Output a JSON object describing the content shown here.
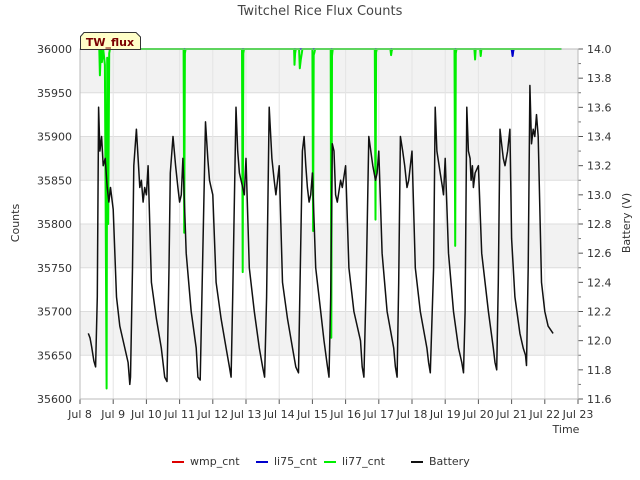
{
  "chart_data": {
    "type": "line",
    "title": "Twitchel Rice Flux Counts",
    "xlabel": "Time",
    "ylabel": "Counts",
    "y2label": "Battery (V)",
    "xlim": [
      8,
      23
    ],
    "ylim": [
      35600,
      36000
    ],
    "y2lim": [
      11.6,
      14.0
    ],
    "x_ticks": [
      8,
      9,
      10,
      11,
      12,
      13,
      14,
      15,
      16,
      17,
      18,
      19,
      20,
      21,
      22,
      23
    ],
    "x_tick_labels": [
      "Jul 8",
      "Jul 9",
      "Jul 10",
      "Jul 11",
      "Jul 12",
      "Jul 13",
      "Jul 14",
      "Jul 15",
      "Jul 16",
      "Jul 17",
      "Jul 18",
      "Jul 19",
      "Jul 20",
      "Jul 21",
      "Jul 22",
      "Jul 23"
    ],
    "y_ticks": [
      35600,
      35650,
      35700,
      35750,
      35800,
      35850,
      35900,
      35950,
      36000
    ],
    "y2_ticks": [
      11.6,
      11.8,
      12.0,
      12.2,
      12.4,
      12.6,
      12.8,
      13.0,
      13.2,
      13.4,
      13.6,
      13.8,
      14.0
    ],
    "y2_tick_labels": [
      "11.6",
      "11.8",
      "12.0",
      "12.2",
      "12.4",
      "12.6",
      "12.8",
      "13.0",
      "13.2",
      "13.4",
      "13.6",
      "13.8",
      "14.0"
    ],
    "badge": "TW_flux",
    "legend": [
      "wmp_cnt",
      "li75_cnt",
      "li77_cnt",
      "Battery"
    ],
    "series": [
      {
        "name": "wmp_cnt",
        "axis": "left",
        "color": "#dd0000",
        "x": [],
        "y": []
      },
      {
        "name": "li75_cnt",
        "axis": "left",
        "color": "#0000cc",
        "x": [
          8.5,
          21.0,
          21.01,
          21.03,
          21.05,
          21.07,
          22.5
        ],
        "y": [
          36000,
          36000,
          35998,
          35992,
          35998,
          36000,
          36000
        ]
      },
      {
        "name": "li77_cnt",
        "axis": "left",
        "color": "#00ee00",
        "x": [
          8.5,
          8.58,
          8.6,
          8.63,
          8.66,
          8.7,
          8.75,
          8.8,
          8.82,
          8.85,
          8.88,
          8.9,
          11.12,
          11.14,
          11.16,
          11.18,
          12.88,
          12.9,
          12.92,
          12.94,
          14.45,
          14.46,
          14.48,
          14.5,
          14.6,
          14.62,
          14.65,
          14.68,
          14.7,
          15.0,
          15.02,
          15.04,
          15.06,
          15.08,
          15.55,
          15.57,
          15.59,
          15.61,
          16.88,
          16.9,
          16.92,
          16.94,
          17.35,
          17.37,
          17.39,
          17.41,
          19.28,
          19.3,
          19.32,
          19.34,
          19.88,
          19.9,
          19.92,
          20.05,
          20.07,
          20.09,
          22.5
        ],
        "y": [
          36000,
          36000,
          35970,
          36000,
          35985,
          36000,
          35982,
          35612,
          35990,
          35800,
          35995,
          36000,
          36000,
          35790,
          35995,
          36000,
          36000,
          35745,
          35995,
          36000,
          36000,
          35982,
          35995,
          36000,
          36000,
          35978,
          35988,
          35995,
          36000,
          36000,
          35792,
          35993,
          35996,
          36000,
          36000,
          35670,
          35992,
          36000,
          36000,
          35805,
          35996,
          36000,
          36000,
          35993,
          35998,
          36000,
          36000,
          35775,
          35995,
          36000,
          36000,
          35988,
          36000,
          36000,
          35992,
          36000,
          36000
        ]
      },
      {
        "name": "Battery",
        "axis": "right",
        "color": "#111111",
        "x": [
          8.25,
          8.3,
          8.35,
          8.42,
          8.47,
          8.52,
          8.56,
          8.6,
          8.65,
          8.7,
          8.76,
          8.82,
          8.87,
          8.92,
          9.0,
          9.1,
          9.2,
          9.35,
          9.45,
          9.5,
          9.52,
          9.58,
          9.62,
          9.7,
          9.8,
          9.85,
          9.9,
          9.95,
          10.0,
          10.05,
          10.15,
          10.3,
          10.45,
          10.55,
          10.62,
          10.68,
          10.72,
          10.8,
          10.88,
          10.95,
          11.0,
          11.05,
          11.1,
          11.2,
          11.35,
          11.5,
          11.55,
          11.62,
          11.7,
          11.78,
          11.85,
          11.9,
          11.95,
          12.0,
          12.1,
          12.25,
          12.4,
          12.5,
          12.55,
          12.6,
          12.7,
          12.75,
          12.8,
          12.9,
          12.95,
          13.0,
          13.1,
          13.25,
          13.4,
          13.5,
          13.56,
          13.62,
          13.7,
          13.78,
          13.85,
          13.9,
          14.0,
          14.1,
          14.25,
          14.4,
          14.5,
          14.58,
          14.62,
          14.7,
          14.75,
          14.8,
          14.85,
          14.9,
          14.95,
          15.0,
          15.1,
          15.25,
          15.35,
          15.45,
          15.5,
          15.55,
          15.6,
          15.65,
          15.7,
          15.75,
          15.85,
          15.9,
          16.0,
          16.1,
          16.25,
          16.45,
          16.5,
          16.55,
          16.62,
          16.7,
          16.76,
          16.82,
          16.9,
          16.95,
          17.0,
          17.1,
          17.25,
          17.45,
          17.5,
          17.55,
          17.6,
          17.65,
          17.72,
          17.78,
          17.85,
          17.9,
          18.0,
          18.1,
          18.25,
          18.45,
          18.5,
          18.55,
          18.65,
          18.7,
          18.75,
          18.85,
          18.92,
          18.95,
          19.0,
          19.1,
          19.25,
          19.4,
          19.5,
          19.55,
          19.6,
          19.65,
          19.7,
          19.75,
          19.78,
          19.82,
          19.85,
          19.9,
          20.0,
          20.1,
          20.3,
          20.45,
          20.5,
          20.55,
          20.6,
          20.65,
          20.7,
          20.75,
          20.8,
          20.88,
          20.95,
          21.0,
          21.1,
          21.25,
          21.35,
          21.42,
          21.45,
          21.5,
          21.55,
          21.6,
          21.65,
          21.7,
          21.75,
          21.8,
          21.9,
          22.0,
          22.1,
          22.25
        ],
        "y": [
          12.05,
          12.02,
          11.96,
          11.86,
          11.82,
          12.3,
          13.6,
          13.3,
          13.4,
          13.2,
          13.25,
          13.05,
          12.95,
          13.05,
          12.9,
          12.3,
          12.1,
          11.95,
          11.85,
          11.7,
          11.75,
          12.5,
          13.2,
          13.45,
          13.05,
          13.1,
          12.95,
          13.05,
          13.0,
          13.2,
          12.4,
          12.15,
          11.95,
          11.75,
          11.72,
          12.5,
          13.15,
          13.4,
          13.2,
          13.05,
          12.95,
          13.0,
          13.25,
          12.6,
          12.2,
          11.95,
          11.75,
          11.73,
          12.6,
          13.5,
          13.25,
          13.1,
          13.05,
          13.0,
          12.4,
          12.15,
          11.95,
          11.82,
          11.75,
          12.3,
          13.6,
          13.3,
          13.15,
          13.05,
          13.0,
          13.25,
          12.5,
          12.2,
          11.95,
          11.82,
          11.75,
          12.3,
          13.6,
          13.25,
          13.1,
          13.0,
          13.2,
          12.4,
          12.15,
          11.95,
          11.82,
          11.78,
          12.3,
          13.3,
          13.4,
          13.2,
          13.05,
          12.95,
          13.0,
          13.15,
          12.5,
          12.2,
          12.0,
          11.83,
          11.75,
          12.3,
          13.35,
          13.3,
          13.0,
          12.95,
          13.1,
          13.05,
          13.2,
          12.5,
          12.2,
          12.0,
          11.82,
          11.75,
          12.4,
          13.4,
          13.3,
          13.2,
          13.1,
          13.15,
          13.3,
          12.6,
          12.2,
          11.95,
          11.82,
          11.75,
          12.4,
          13.4,
          13.3,
          13.2,
          13.05,
          13.1,
          13.3,
          12.5,
          12.2,
          11.95,
          11.85,
          11.78,
          12.5,
          13.6,
          13.3,
          13.15,
          13.05,
          13.0,
          13.25,
          12.6,
          12.2,
          11.95,
          11.85,
          11.78,
          12.2,
          13.6,
          13.3,
          13.25,
          13.1,
          13.2,
          13.05,
          13.15,
          13.2,
          12.6,
          12.2,
          11.95,
          11.85,
          11.8,
          12.4,
          13.45,
          13.35,
          13.25,
          13.2,
          13.3,
          13.45,
          12.7,
          12.3,
          12.05,
          11.95,
          11.9,
          11.83,
          12.5,
          13.75,
          13.35,
          13.45,
          13.4,
          13.55,
          13.4,
          12.4,
          12.2,
          12.1,
          12.05
        ]
      }
    ]
  }
}
